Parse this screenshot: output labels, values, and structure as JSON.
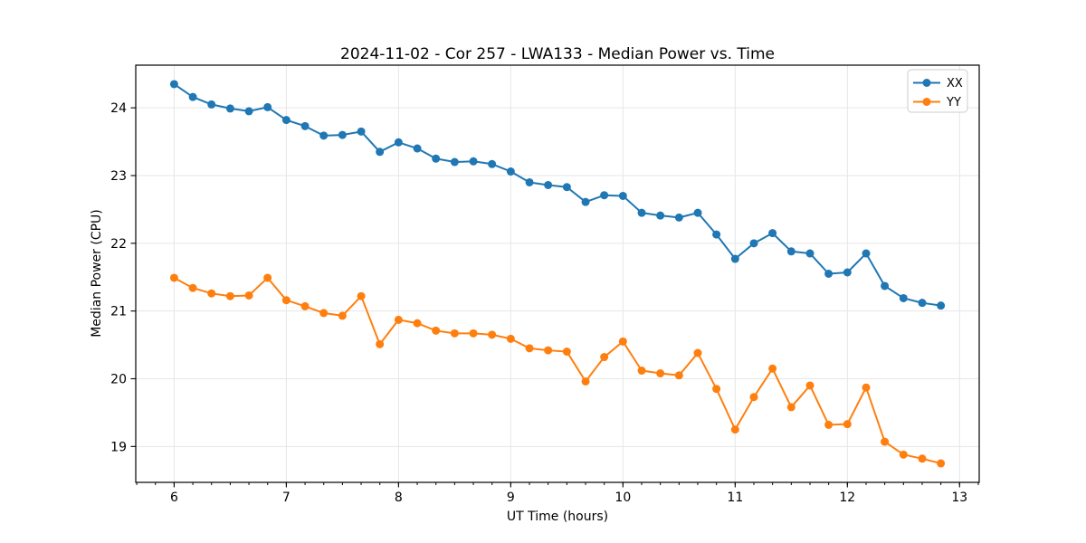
{
  "chart_data": {
    "type": "line",
    "title": "2024-11-02 - Cor 257 - LWA133 - Median Power vs. Time",
    "xlabel": "UT Time (hours)",
    "ylabel": "Median Power (CPU)",
    "xlim": [
      5.658,
      13.175
    ],
    "ylim": [
      18.47,
      24.63
    ],
    "x_ticks": [
      6,
      7,
      8,
      9,
      10,
      11,
      12,
      13
    ],
    "y_ticks": [
      19,
      20,
      21,
      22,
      23,
      24
    ],
    "x_minor_tick_step_hours": 0.166667,
    "grid": true,
    "legend": {
      "position": "upper right"
    },
    "colors": {
      "grid": "#e6e6e6",
      "spine": "#000000",
      "tick": "#000000",
      "background": "#ffffff",
      "legend_border": "#cccccc",
      "legend_background": "#ffffff"
    },
    "x": [
      6.0,
      6.167,
      6.333,
      6.5,
      6.667,
      6.833,
      7.0,
      7.167,
      7.333,
      7.5,
      7.667,
      7.833,
      8.0,
      8.167,
      8.333,
      8.5,
      8.667,
      8.833,
      9.0,
      9.167,
      9.333,
      9.5,
      9.667,
      9.833,
      10.0,
      10.167,
      10.333,
      10.5,
      10.667,
      10.833,
      11.0,
      11.167,
      11.333,
      11.5,
      11.667,
      11.833,
      12.0,
      12.167,
      12.333,
      12.5,
      12.667,
      12.833
    ],
    "series": [
      {
        "name": "XX",
        "color": "#1f77b4",
        "marker": "circle",
        "values": [
          24.35,
          24.16,
          24.05,
          23.99,
          23.95,
          24.01,
          23.82,
          23.73,
          23.59,
          23.6,
          23.65,
          23.35,
          23.49,
          23.4,
          23.25,
          23.2,
          23.21,
          23.17,
          23.06,
          22.9,
          22.86,
          22.83,
          22.61,
          22.71,
          22.7,
          22.45,
          22.41,
          22.38,
          22.45,
          22.13,
          21.77,
          22.0,
          22.15,
          21.88,
          21.85,
          21.55,
          21.57,
          21.85,
          21.37,
          21.19,
          21.12,
          21.08
        ]
      },
      {
        "name": "YY",
        "color": "#ff7f0e",
        "marker": "circle",
        "values": [
          21.49,
          21.34,
          21.26,
          21.22,
          21.23,
          21.49,
          21.16,
          21.07,
          20.97,
          20.93,
          21.22,
          20.51,
          20.87,
          20.82,
          20.71,
          20.67,
          20.67,
          20.65,
          20.59,
          20.45,
          20.42,
          20.4,
          19.96,
          20.32,
          20.55,
          20.12,
          20.08,
          20.05,
          20.38,
          19.85,
          19.25,
          19.73,
          20.15,
          19.58,
          19.9,
          19.32,
          19.33,
          19.87,
          19.07,
          18.88,
          18.82,
          18.75
        ]
      }
    ]
  }
}
